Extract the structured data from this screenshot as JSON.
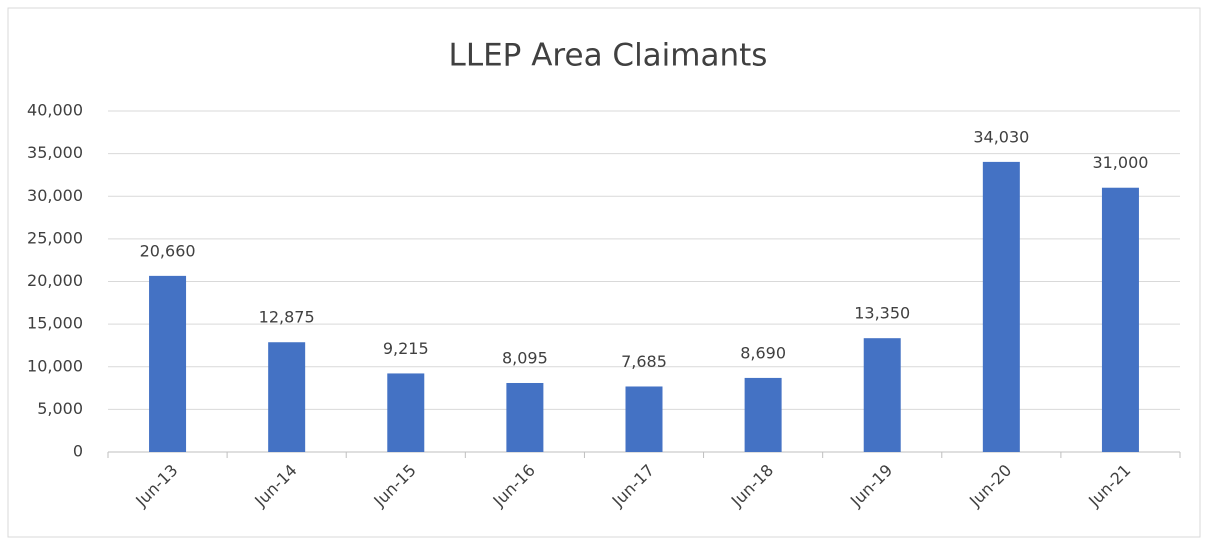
{
  "chart_data": {
    "type": "bar",
    "title": "LLEP Area Claimants",
    "categories": [
      "Jun-13",
      "Jun-14",
      "Jun-15",
      "Jun-16",
      "Jun-17",
      "Jun-18",
      "Jun-19",
      "Jun-20",
      "Jun-21"
    ],
    "values": [
      20660,
      12875,
      9215,
      8095,
      7685,
      8690,
      13350,
      34030,
      31000
    ],
    "value_labels": [
      "20,660",
      "12,875",
      "9,215",
      "8,095",
      "7,685",
      "8,690",
      "13,350",
      "34,030",
      "31,000"
    ],
    "color": "#4472c4",
    "ylim": [
      0,
      40000
    ],
    "yticks": [
      0,
      {
        "value": 5000,
        "label": "5,000"
      },
      {
        "value": 10000,
        "label": "10,000"
      },
      {
        "value": 15000,
        "label": "15,000"
      },
      {
        "value": 20000,
        "label": "20,000"
      },
      {
        "value": 25000,
        "label": "25,000"
      },
      {
        "value": 30000,
        "label": "30,000"
      },
      {
        "value": 35000,
        "label": "35,000"
      },
      {
        "value": 40000,
        "label": "40,000"
      }
    ],
    "grid": true
  }
}
